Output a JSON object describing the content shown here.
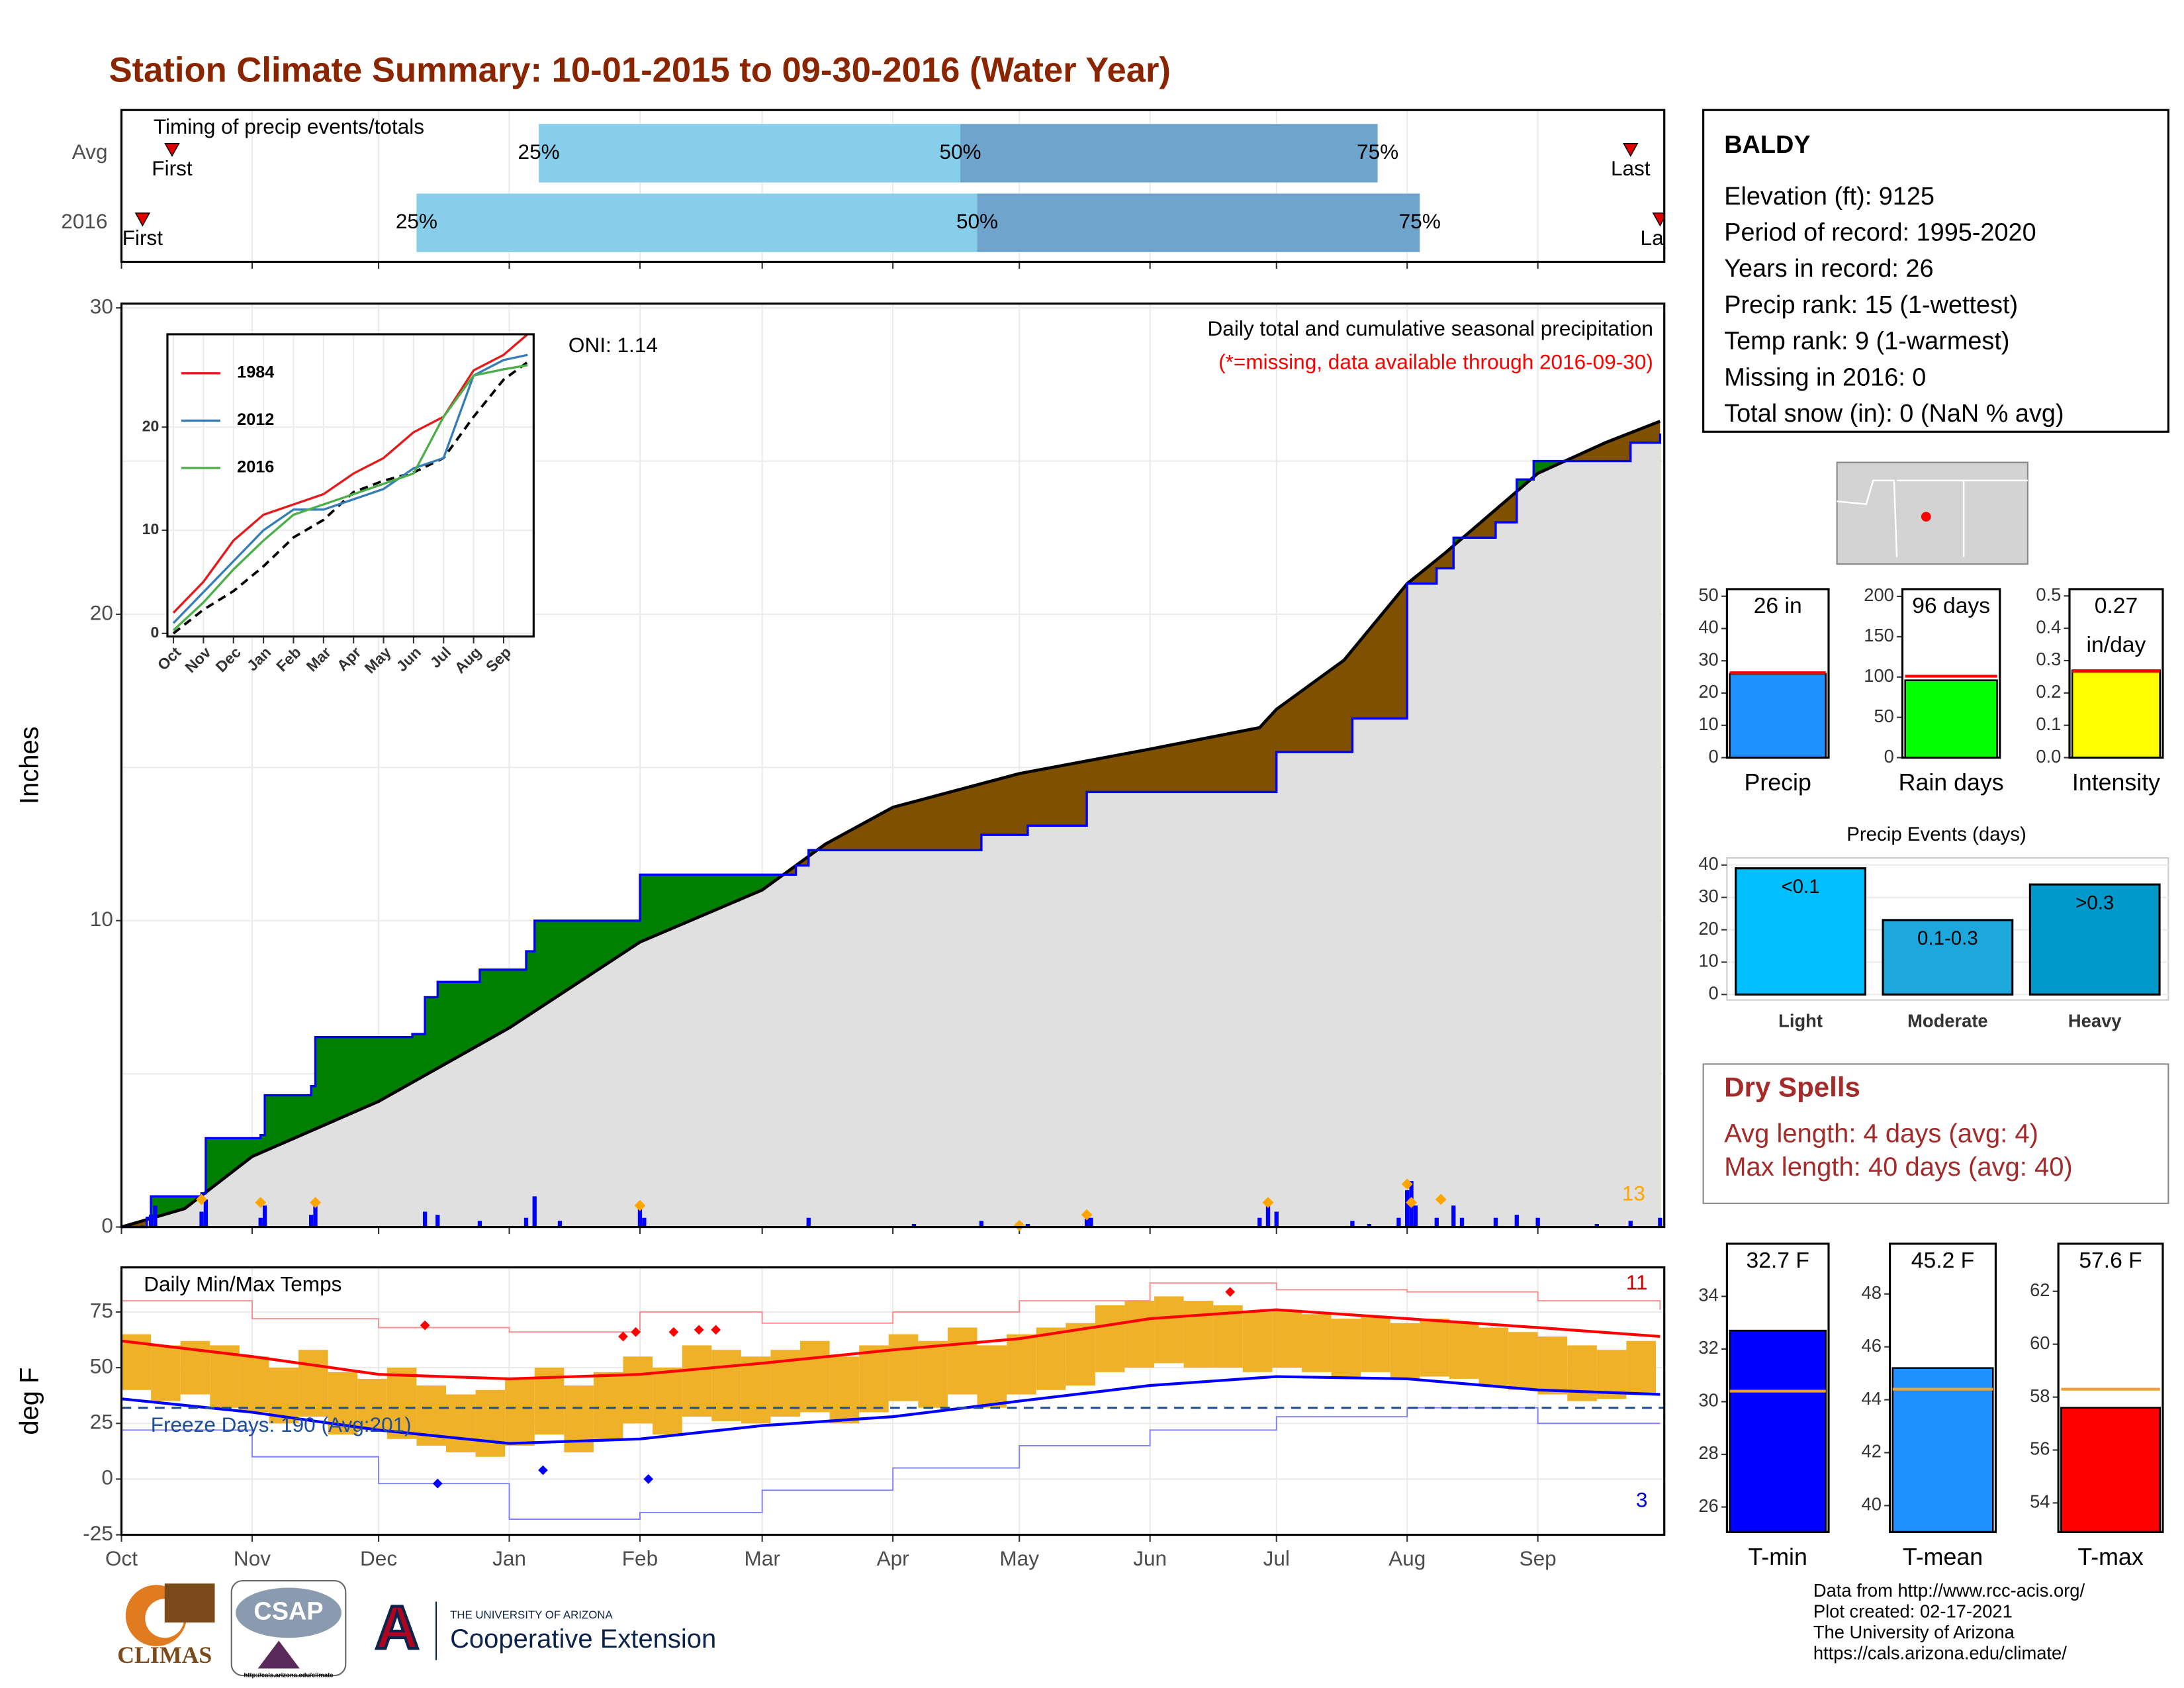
{
  "title": "Station Climate Summary: 10-01-2015 to 09-30-2016 (Water Year)",
  "station": {
    "name": "BALDY",
    "lines": [
      "Elevation (ft): 9125",
      "Period of record: 1995-2020",
      "Years in record: 26",
      "Precip rank: 15 (1-wettest)",
      "Temp rank: 9 (1-warmest)",
      "Missing in 2016: 0",
      "Total snow (in): 0 (NaN % avg)"
    ]
  },
  "dry_spells": {
    "title": "Dry Spells",
    "lines": [
      "Avg length: 4 days (avg: 4)",
      "Max length: 40 days (avg: 40)"
    ]
  },
  "footer": [
    "Data from http://www.rcc-acis.org/",
    "Plot created: 02-17-2021",
    "The University of Arizona",
    "https://cals.arizona.edu/climate/"
  ],
  "logos": {
    "climas": "CLIMAS",
    "csap": "CSAP",
    "csap_url": "http://cals.arizona.edu/climate",
    "ua": "THE UNIVERSITY OF ARIZONA",
    "extension": "Cooperative Extension"
  },
  "chart_data": [
    {
      "type": "timing",
      "title": "Timing of precip events/totals",
      "xlim": [
        0,
        366
      ],
      "xticks": [
        0,
        31,
        61,
        92,
        123,
        152,
        183,
        213,
        244,
        274,
        305,
        336
      ],
      "point_labels": [
        "First",
        "25%",
        "50%",
        "75%",
        "Last"
      ],
      "series": [
        {
          "name": "Avg",
          "values": [
            12,
            99,
            199,
            298,
            358
          ]
        },
        {
          "name": "2016",
          "values": [
            5,
            70,
            203,
            308,
            365
          ]
        }
      ],
      "colors": [
        "#87ceeb",
        "#6fa5cc"
      ],
      "marker_color": "#e00000",
      "grid": true
    },
    {
      "type": "cumulative",
      "ylabel": "Inches",
      "subtitle": "Daily total and cumulative seasonal precipitation",
      "note": "(*=missing, data available through 2016-09-30)",
      "oni": "ONI: 1.14",
      "count_label": "13",
      "xlim": [
        0,
        366
      ],
      "xticks": [
        0,
        31,
        61,
        92,
        123,
        152,
        183,
        213,
        244,
        274,
        305,
        336
      ],
      "ylim": [
        0,
        30.14
      ],
      "yticks": [
        0,
        10,
        20,
        30
      ],
      "yminor": [
        5,
        15,
        25
      ],
      "grid": true,
      "fill_above": "#008000",
      "fill_below": "#7f5000",
      "base_fill": "#e0e0e0",
      "note_color": "#ff0000",
      "count_color": "#ffa500",
      "avg": {
        "color": "#000000",
        "x": [
          0,
          15,
          31,
          61,
          92,
          123,
          152,
          167,
          183,
          213,
          244,
          270,
          274,
          290,
          305,
          314,
          336,
          352,
          365
        ],
        "values": [
          0,
          0.6,
          2.3,
          4.1,
          6.5,
          9.3,
          11.0,
          12.5,
          13.7,
          14.8,
          15.6,
          16.3,
          16.9,
          18.5,
          21.0,
          22.0,
          24.6,
          25.6,
          26.3
        ]
      },
      "observed": {
        "color": "#0000ff",
        "step": true,
        "x": [
          0,
          6,
          7,
          19,
          20,
          33,
          34,
          45,
          46,
          69,
          72,
          75,
          83,
          85,
          96,
          98,
          122,
          123,
          160,
          163,
          204,
          215,
          229,
          272,
          274,
          290,
          292,
          305,
          312,
          316,
          326,
          331,
          335,
          340,
          358,
          365
        ],
        "values": [
          0,
          0.3,
          1.0,
          1.1,
          2.9,
          3.0,
          4.3,
          4.6,
          6.2,
          6.3,
          7.5,
          8.0,
          8.0,
          8.4,
          9.0,
          10.0,
          10.0,
          11.5,
          11.8,
          12.3,
          12.8,
          13.1,
          14.2,
          14.2,
          15.5,
          15.5,
          16.6,
          21.0,
          21.5,
          22.5,
          23.0,
          24.4,
          25.0,
          25.0,
          25.6,
          25.9
        ]
      },
      "daily": {
        "color": "#0000ff",
        "x": [
          5,
          7,
          8,
          19,
          20,
          33,
          34,
          45,
          46,
          72,
          75,
          85,
          96,
          98,
          104,
          123,
          124,
          163,
          188,
          204,
          215,
          229,
          230,
          270,
          272,
          274,
          292,
          296,
          303,
          305,
          306,
          307,
          312,
          316,
          318,
          326,
          331,
          336,
          350,
          358,
          365
        ],
        "values": [
          0.05,
          0.4,
          0.7,
          0.5,
          0.9,
          0.3,
          0.7,
          0.4,
          0.8,
          0.5,
          0.4,
          0.2,
          0.3,
          1.0,
          0.2,
          0.8,
          0.3,
          0.3,
          0.1,
          0.2,
          0.1,
          0.5,
          0.3,
          0.3,
          0.9,
          0.5,
          0.2,
          0.1,
          0.3,
          1.2,
          1.5,
          0.7,
          0.3,
          0.7,
          0.3,
          0.3,
          0.4,
          0.3,
          0.1,
          0.2,
          0.3
        ]
      },
      "markers": {
        "color": "#ffa500",
        "x": [
          19,
          33,
          46,
          123,
          213,
          229,
          272,
          305,
          306,
          313
        ],
        "values": [
          0.9,
          0.8,
          0.8,
          0.7,
          0.05,
          0.4,
          0.8,
          1.4,
          0.8,
          0.9
        ]
      }
    },
    {
      "type": "line",
      "xlim": [
        -0.2,
        12
      ],
      "xticks": [
        {
          "value": 0,
          "label": "Oct"
        },
        {
          "value": 1,
          "label": "Nov"
        },
        {
          "value": 2,
          "label": "Dec"
        },
        {
          "value": 3,
          "label": "Jan"
        },
        {
          "value": 4,
          "label": "Feb"
        },
        {
          "value": 5,
          "label": "Mar"
        },
        {
          "value": 6,
          "label": "Apr"
        },
        {
          "value": 7,
          "label": "May"
        },
        {
          "value": 8,
          "label": "Jun"
        },
        {
          "value": 9,
          "label": "Jul"
        },
        {
          "value": 10,
          "label": "Aug"
        },
        {
          "value": 11,
          "label": "Sep"
        }
      ],
      "ylim": [
        -0.3,
        29
      ],
      "yticks": [
        0,
        10,
        20
      ],
      "grid": true,
      "x": [
        0,
        1,
        2,
        3,
        4,
        5,
        6,
        7,
        8,
        9,
        10,
        11,
        11.8
      ],
      "series": [
        {
          "name": "1984",
          "color": "#e41a1c",
          "values": [
            2,
            5,
            9,
            11.5,
            12.5,
            13.5,
            15.5,
            17,
            19.5,
            21,
            25.5,
            27,
            29
          ]
        },
        {
          "name": "2012",
          "color": "#377eb8",
          "values": [
            1,
            4,
            7,
            10,
            12,
            12,
            13,
            14,
            16,
            17,
            25,
            26.5,
            27
          ]
        },
        {
          "name": "2016",
          "color": "#4daf4a",
          "values": [
            0.3,
            3,
            6.2,
            9,
            11.5,
            12.5,
            13.5,
            14.5,
            15.5,
            21,
            25,
            25.6,
            26
          ]
        }
      ],
      "avg": {
        "color": "#000000",
        "dash": true,
        "values": [
          0,
          2.3,
          4.1,
          6.5,
          9.3,
          11,
          13.7,
          14.8,
          15.6,
          17,
          21,
          24.6,
          26.3
        ]
      }
    },
    {
      "type": "temps",
      "title": "Daily Min/Max Temps",
      "ylabel": "deg F",
      "xlim": [
        0,
        366
      ],
      "xticks": [
        {
          "value": 0,
          "label": "Oct"
        },
        {
          "value": 31,
          "label": "Nov"
        },
        {
          "value": 61,
          "label": "Dec"
        },
        {
          "value": 92,
          "label": "Jan"
        },
        {
          "value": 123,
          "label": "Feb"
        },
        {
          "value": 152,
          "label": "Mar"
        },
        {
          "value": 183,
          "label": "Apr"
        },
        {
          "value": 213,
          "label": "May"
        },
        {
          "value": 244,
          "label": "Jun"
        },
        {
          "value": 274,
          "label": "Jul"
        },
        {
          "value": 305,
          "label": "Aug"
        },
        {
          "value": 336,
          "label": "Sep"
        }
      ],
      "ylim": [
        -25,
        95
      ],
      "yticks": [
        -25,
        0,
        25,
        50,
        75
      ],
      "grid": true,
      "freeze_line": 32,
      "freeze_color": "#1f4e9a",
      "annotations": [
        {
          "text": "11",
          "color": "#cc0000"
        },
        {
          "text": "3",
          "color": "#0000cc"
        },
        {
          "text": "Freeze Days: 190 (Avg:201)",
          "color": "#1f4e9a"
        }
      ],
      "daily": {
        "color": "#efb128",
        "x": [
          0,
          7,
          14,
          21,
          28,
          35,
          42,
          49,
          56,
          63,
          70,
          77,
          84,
          91,
          98,
          105,
          112,
          119,
          126,
          133,
          140,
          147,
          154,
          161,
          168,
          175,
          182,
          189,
          196,
          203,
          210,
          217,
          224,
          231,
          238,
          245,
          252,
          259,
          266,
          273,
          280,
          287,
          294,
          301,
          308,
          315,
          322,
          329,
          336,
          343,
          350,
          357
        ],
        "max": [
          65,
          60,
          62,
          60,
          55,
          50,
          58,
          48,
          45,
          50,
          42,
          38,
          40,
          45,
          50,
          42,
          48,
          55,
          50,
          60,
          58,
          55,
          58,
          62,
          55,
          60,
          65,
          62,
          68,
          60,
          65,
          68,
          70,
          78,
          80,
          82,
          80,
          78,
          75,
          76,
          74,
          72,
          73,
          70,
          72,
          70,
          68,
          66,
          64,
          60,
          58,
          62
        ],
        "min": [
          40,
          35,
          38,
          32,
          30,
          25,
          28,
          20,
          22,
          18,
          15,
          12,
          10,
          15,
          20,
          12,
          18,
          25,
          20,
          28,
          26,
          25,
          28,
          30,
          25,
          30,
          35,
          32,
          38,
          32,
          38,
          40,
          42,
          48,
          50,
          52,
          50,
          50,
          48,
          50,
          48,
          46,
          48,
          45,
          46,
          45,
          42,
          40,
          38,
          35,
          36,
          38
        ]
      },
      "record_max": {
        "color": "#ff8c8c",
        "x": [
          0,
          31,
          61,
          92,
          123,
          152,
          183,
          213,
          244,
          274,
          305,
          336,
          365
        ],
        "values": [
          80,
          72,
          68,
          66,
          75,
          70,
          75,
          80,
          88,
          85,
          84,
          80,
          76
        ]
      },
      "record_min": {
        "color": "#8080ff",
        "x": [
          0,
          31,
          61,
          92,
          123,
          152,
          183,
          213,
          244,
          274,
          305,
          336,
          365
        ],
        "values": [
          22,
          10,
          -2,
          -18,
          -15,
          -5,
          5,
          15,
          22,
          28,
          32,
          25,
          25
        ]
      },
      "avg_max": {
        "color": "#ff0000",
        "x": [
          0,
          31,
          61,
          92,
          123,
          152,
          183,
          213,
          244,
          274,
          305,
          336,
          365
        ],
        "values": [
          62,
          55,
          47,
          45,
          47,
          52,
          58,
          63,
          72,
          76,
          72,
          68,
          64
        ]
      },
      "avg_min": {
        "color": "#0000ff",
        "x": [
          0,
          31,
          61,
          92,
          123,
          152,
          183,
          213,
          244,
          274,
          305,
          336,
          365
        ],
        "values": [
          36,
          30,
          22,
          16,
          18,
          24,
          28,
          35,
          42,
          46,
          45,
          40,
          38
        ]
      },
      "markers_high": {
        "color": "#ff0000",
        "x": [
          72,
          119,
          122,
          131,
          137,
          141,
          263
        ],
        "values": [
          69,
          64,
          66,
          66,
          67,
          67,
          84
        ]
      },
      "markers_low": {
        "color": "#0000ff",
        "x": [
          75,
          100,
          125
        ],
        "values": [
          -2,
          4,
          0
        ]
      }
    },
    {
      "type": "single_bar",
      "categories": [
        "Precip"
      ],
      "values": [
        26
      ],
      "value_labels": [
        "26 in"
      ],
      "avg": 26.3,
      "color": "#1e90ff",
      "avg_color": "#ff0000",
      "ylim": [
        0,
        52.2
      ],
      "yticks": [
        0,
        10,
        20,
        30,
        40,
        50
      ]
    },
    {
      "type": "single_bar",
      "categories": [
        "Rain days"
      ],
      "values": [
        96
      ],
      "value_labels": [
        "96 days"
      ],
      "avg": 101,
      "color": "#00ff00",
      "avg_color": "#ff0000",
      "ylim": [
        0,
        209
      ],
      "yticks": [
        0,
        50,
        100,
        150,
        200
      ]
    },
    {
      "type": "single_bar",
      "categories": [
        "Intensity"
      ],
      "values": [
        0.27
      ],
      "value_labels": [
        "0.27"
      ],
      "unit": "in/day",
      "avg": 0.267,
      "color": "#ffff00",
      "avg_color": "#ff0000",
      "ylim": [
        0,
        0.521
      ],
      "yticks": [
        {
          "value": 0,
          "label": "0.0"
        },
        0.1,
        0.2,
        0.3,
        0.4,
        0.5
      ]
    },
    {
      "type": "bar",
      "title": "Precip Events (days)",
      "categories": [
        "Light",
        "Moderate",
        "Heavy"
      ],
      "values": [
        39,
        23,
        34
      ],
      "bin_labels": [
        "<0.1",
        "0.1-0.3",
        ">0.3"
      ],
      "colors": [
        "#00bfff",
        "#1ca8dd",
        "#0099cc"
      ],
      "ylim": [
        -1.7,
        42.2
      ],
      "yticks": [
        0,
        10,
        20,
        30,
        40
      ],
      "grid": true
    },
    {
      "type": "single_bar",
      "categories": [
        "T-min"
      ],
      "values": [
        32.7
      ],
      "value_labels": [
        "32.7 F"
      ],
      "avg": 30.4,
      "color": "#0000ff",
      "avg_color": "#f0a030",
      "ylim": [
        25.05,
        36.0
      ],
      "yticks": [
        26,
        28,
        30,
        32,
        34
      ]
    },
    {
      "type": "single_bar",
      "categories": [
        "T-mean"
      ],
      "values": [
        45.2
      ],
      "value_labels": [
        "45.2 F"
      ],
      "avg": 44.4,
      "color": "#1e90ff",
      "avg_color": "#f0a030",
      "ylim": [
        39.0,
        49.9
      ],
      "yticks": [
        40,
        42,
        44,
        46,
        48
      ]
    },
    {
      "type": "single_bar",
      "categories": [
        "T-max"
      ],
      "values": [
        57.6
      ],
      "value_labels": [
        "57.6 F"
      ],
      "avg": 58.3,
      "color": "#ff0000",
      "avg_color": "#f0a030",
      "ylim": [
        52.9,
        63.8
      ],
      "yticks": [
        54,
        56,
        58,
        60,
        62
      ]
    }
  ]
}
